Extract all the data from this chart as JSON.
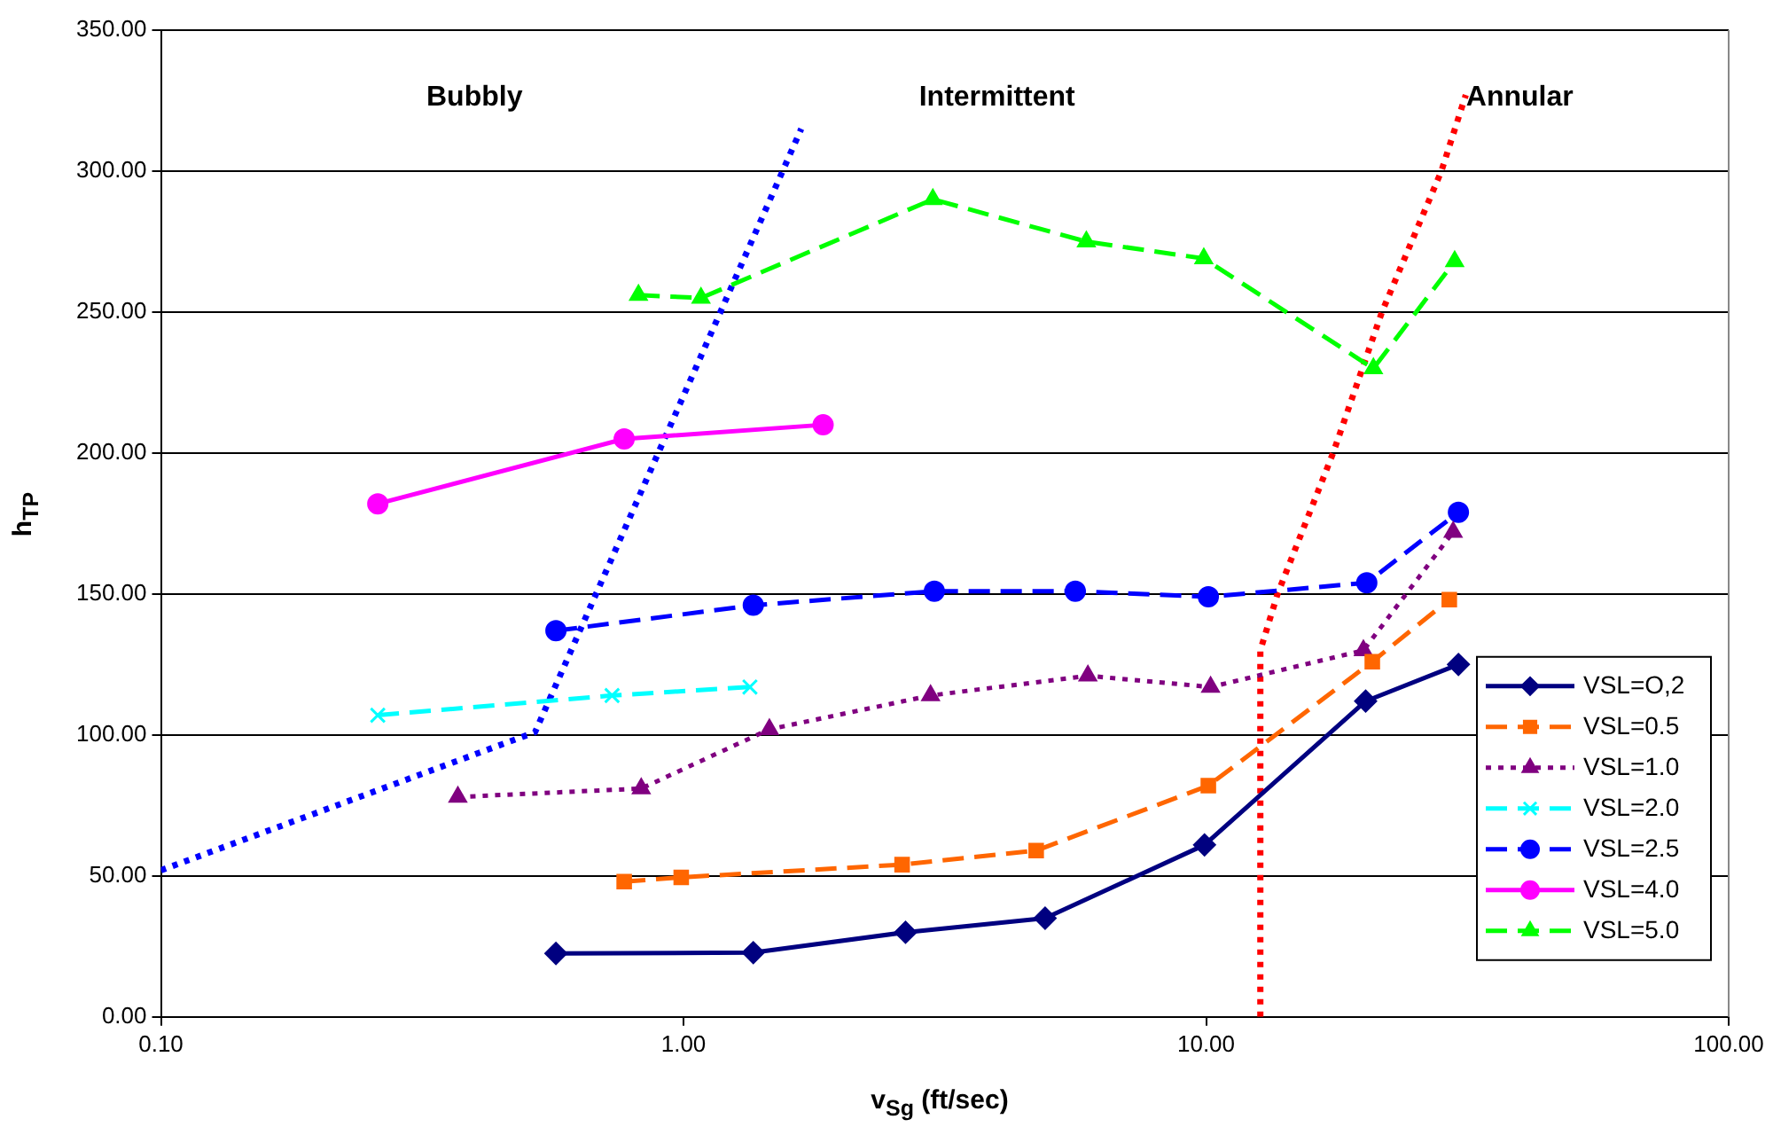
{
  "chart_data": {
    "type": "line",
    "xlabel": "v$_{Sg}$ (ft/sec)",
    "ylabel": "h$_{TP}$",
    "log": "x",
    "grid": "y",
    "legend": "bottom right",
    "xlim": [
      0.1,
      100
    ],
    "xticks": [
      {
        "value": 0.1,
        "label": "0.10"
      },
      {
        "value": 1,
        "label": "1.00"
      },
      {
        "value": 10,
        "label": "10.00"
      },
      {
        "value": 100,
        "label": "100.00"
      }
    ],
    "ylim": [
      0,
      350
    ],
    "yticks": [
      {
        "value": 0,
        "label": "0.00"
      },
      {
        "value": 50,
        "label": "50.00"
      },
      {
        "value": 100,
        "label": "100.00"
      },
      {
        "value": 150,
        "label": "150.00"
      },
      {
        "value": 200,
        "label": "200.00"
      },
      {
        "value": 250,
        "label": "250.00"
      },
      {
        "value": 300,
        "label": "300.00"
      },
      {
        "value": 350,
        "label": "350.00"
      }
    ],
    "annotations": [
      "Bubbly",
      "Intermittent",
      "Annular"
    ],
    "series": [
      {
        "name": "VSL=O,2",
        "color": "#000080",
        "marker": "diamond",
        "line_style": "solid",
        "x": [
          0.57,
          1.36,
          2.66,
          4.92,
          9.93,
          20.2,
          30.4
        ],
        "values": [
          22.5,
          22.8,
          30,
          35,
          61,
          112,
          125
        ]
      },
      {
        "name": "VSL=0.5",
        "color": "#ff6600",
        "marker": "square",
        "line_style": "dashed",
        "x": [
          0.77,
          0.99,
          2.62,
          4.73,
          10.1,
          20.8,
          29.2
        ],
        "values": [
          48,
          49.5,
          54,
          59,
          82,
          126,
          148
        ]
      },
      {
        "name": "VSL=1.0",
        "color": "#800080",
        "marker": "triangle",
        "line_style": "dotted",
        "x": [
          0.37,
          0.83,
          1.46,
          2.97,
          5.94,
          10.2,
          20,
          29.7
        ],
        "values": [
          78,
          81,
          102,
          114,
          121,
          117,
          130,
          172
        ]
      },
      {
        "name": "VSL=2.0",
        "color": "#00ffff",
        "marker": "cross",
        "line_style": "dashed",
        "x": [
          0.26,
          0.73,
          1.34
        ],
        "values": [
          107,
          114,
          117
        ]
      },
      {
        "name": "VSL=2.5",
        "color": "#0000ff",
        "marker": "circle",
        "line_style": "dashed",
        "x": [
          0.57,
          1.36,
          3.02,
          5.62,
          10.1,
          20.3,
          30.4
        ],
        "values": [
          137,
          146,
          151,
          151,
          149,
          154,
          179
        ]
      },
      {
        "name": "VSL=4.0",
        "color": "#ff00ff",
        "marker": "circle",
        "line_style": "solid",
        "x": [
          0.26,
          0.77,
          1.85
        ],
        "values": [
          182,
          205,
          210
        ]
      },
      {
        "name": "VSL=5.0",
        "color": "#00ff00",
        "marker": "triangle",
        "line_style": "dashed",
        "x": [
          0.82,
          1.08,
          3.0,
          5.9,
          9.9,
          20.9,
          29.9
        ],
        "values": [
          256,
          255,
          290,
          275,
          269,
          230,
          268
        ]
      },
      {
        "color": "#0000ff",
        "marker": "none",
        "line_style": "dotted",
        "x": [
          0.1,
          0.52,
          1.68
        ],
        "values": [
          52,
          101,
          315
        ]
      },
      {
        "color": "#ff0000",
        "marker": "none",
        "line_style": "dotted",
        "x": [
          12.7,
          12.7,
          13.7,
          17.5,
          21.7,
          28.2,
          31.4
        ],
        "values": [
          0,
          130,
          150,
          200,
          250,
          300,
          327
        ]
      }
    ]
  }
}
